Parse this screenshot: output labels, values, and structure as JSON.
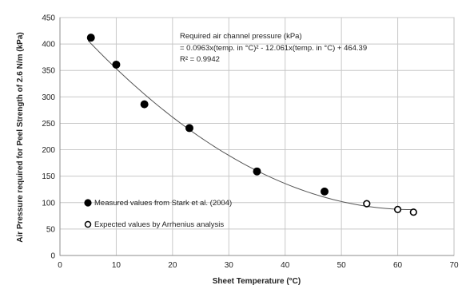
{
  "chart_data": {
    "type": "scatter",
    "xlabel": "Sheet Temperature (°C)",
    "ylabel": "Air Pressure required for Peel Strength of 2.6 N/m (kPa)",
    "xlim": [
      0,
      70
    ],
    "ylim": [
      0,
      450
    ],
    "x_ticks": [
      0,
      10,
      20,
      30,
      40,
      50,
      60,
      70
    ],
    "y_ticks": [
      0,
      50,
      100,
      150,
      200,
      250,
      300,
      350,
      400,
      450
    ],
    "grid": true,
    "series": [
      {
        "name": "Measured values from Stark et al. (2004)",
        "marker": "filled-circle",
        "color": "#000000",
        "x": [
          5.5,
          10,
          15,
          23,
          35,
          47
        ],
        "y": [
          412,
          361,
          286,
          241,
          159,
          121
        ]
      },
      {
        "name": "Expected values by Arrhenius analysis",
        "marker": "open-circle",
        "color": "#000000",
        "x": [
          54.5,
          60,
          62.8
        ],
        "y": [
          98,
          87,
          82
        ]
      }
    ],
    "trendline": {
      "type": "quadratic",
      "a": 0.0963,
      "b": -12.061,
      "c": 464.39,
      "x_range": [
        5,
        63
      ]
    },
    "annotation": {
      "line1": "Required air channel pressure (kPa)",
      "line2": "= 0.0963x(temp. in °C)² - 12.061x(temp. in °C) + 464.39",
      "line3": "R² = 0.9942"
    },
    "legend_placement": "bottom-left"
  }
}
